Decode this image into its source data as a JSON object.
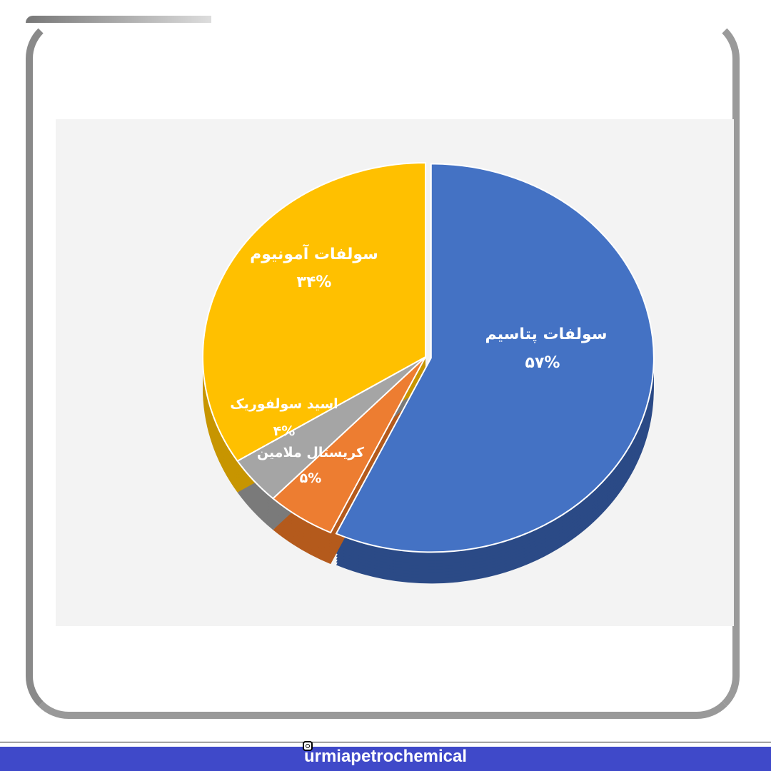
{
  "chart_data": {
    "type": "pie",
    "three_d": true,
    "slices": [
      {
        "label": "سولفات پتاسیم",
        "value": 57,
        "value_label": "۵۷%",
        "color": "#4472c4",
        "side_color": "#2b4a86"
      },
      {
        "label": "کریستال ملامین",
        "value": 5,
        "value_label": "۵%",
        "color": "#ed7d31",
        "side_color": "#b45a1c"
      },
      {
        "label": "اسید سولفوریک",
        "value": 4,
        "value_label": "۴%",
        "color": "#a5a5a5",
        "side_color": "#7a7a7a"
      },
      {
        "label": "سولفات آمونیوم",
        "value": 34,
        "value_label": "۳۴%",
        "color": "#ffc000",
        "side_color": "#c79500"
      }
    ]
  },
  "footer": {
    "handle": "urmiapetrochemical",
    "icon": "instagram-icon",
    "color": "#3f49c9"
  }
}
